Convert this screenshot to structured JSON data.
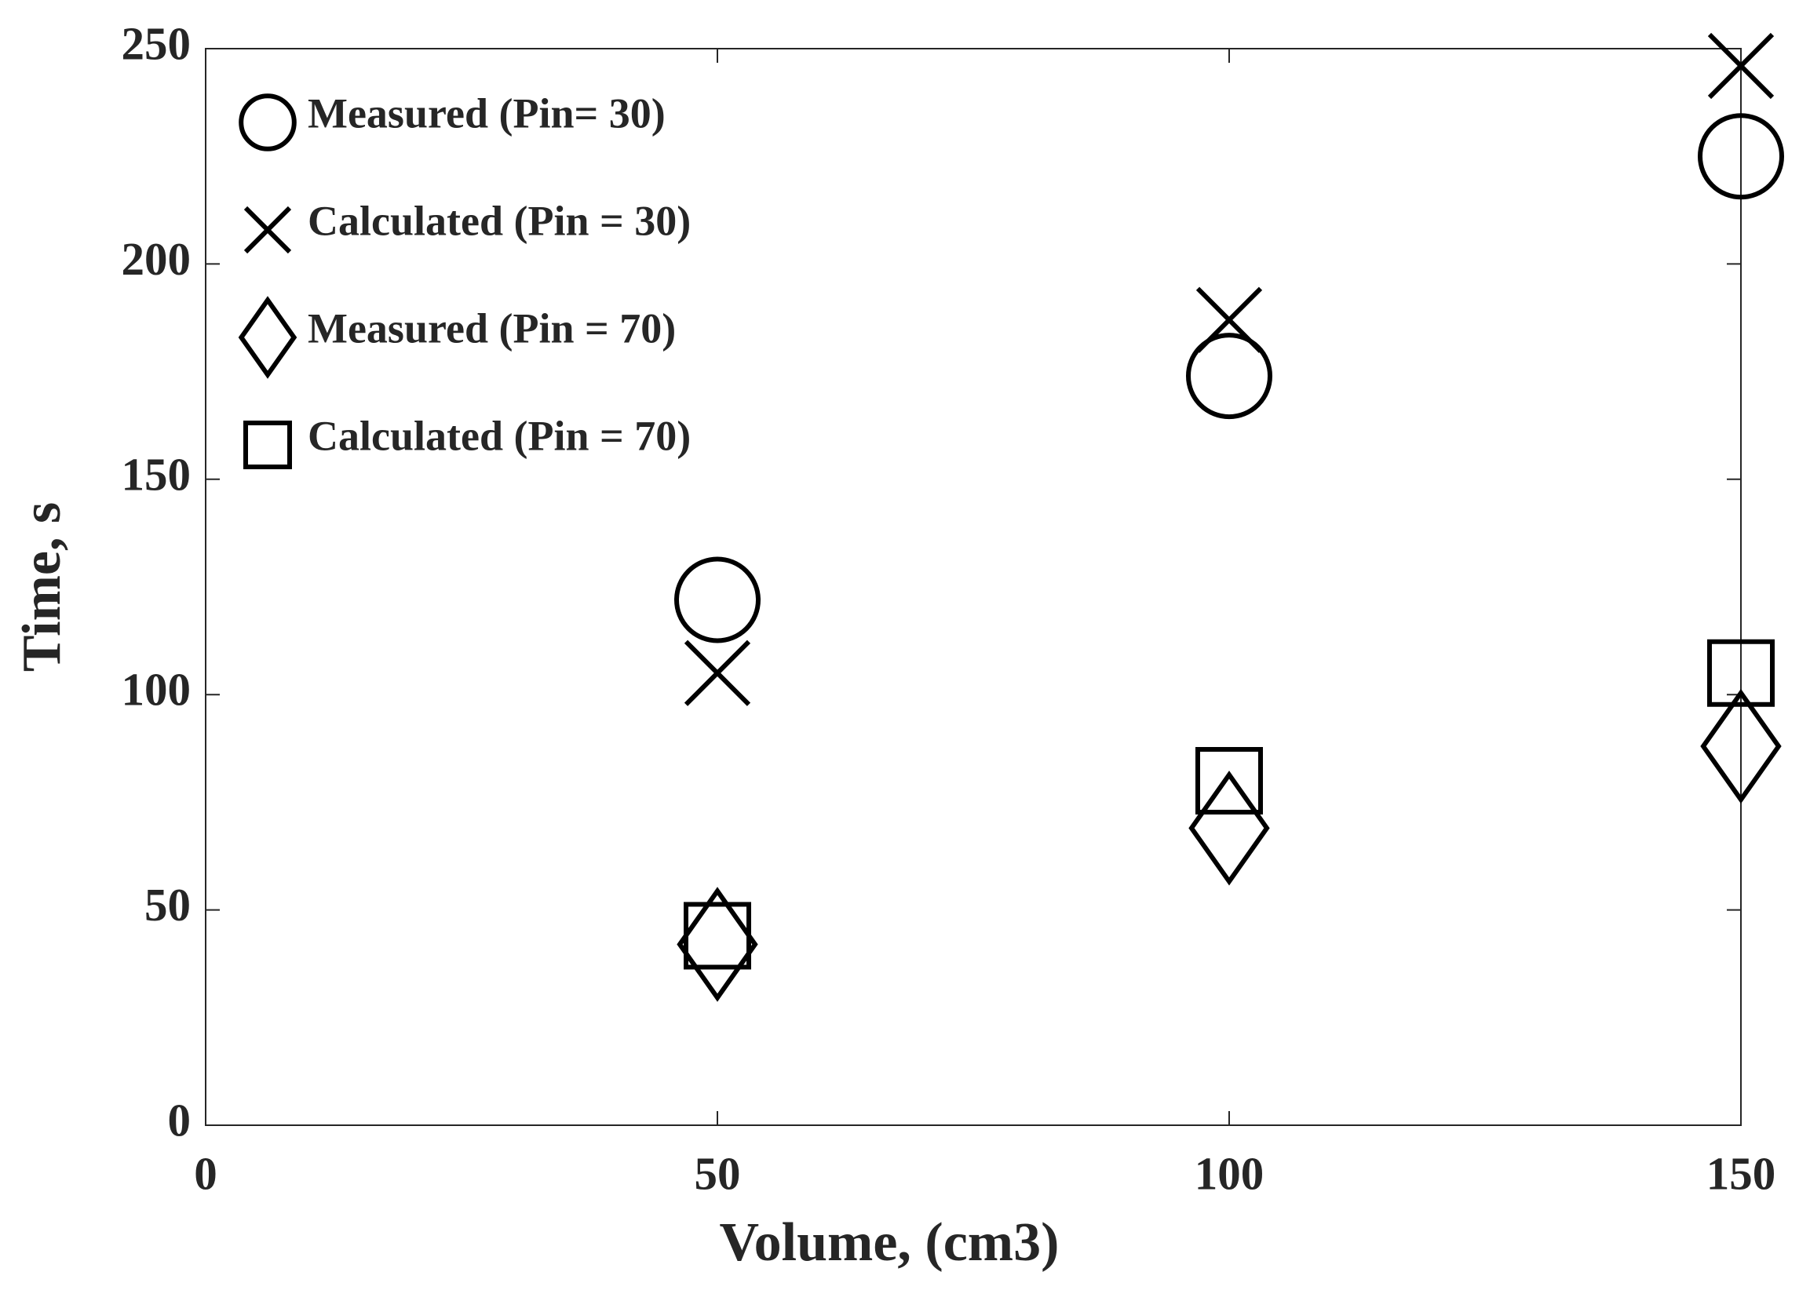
{
  "chart_data": {
    "type": "scatter",
    "xlabel": "Volume, (cm3)",
    "ylabel": "Time, s",
    "x": [
      50,
      100,
      150
    ],
    "series": [
      {
        "name": "Measured (Pin= 30)",
        "marker": "circle",
        "color": "#000000",
        "values": [
          122,
          174,
          225
        ]
      },
      {
        "name": "Calculated (Pin = 30)",
        "marker": "x",
        "color": "#000000",
        "values": [
          105,
          187,
          246
        ]
      },
      {
        "name": "Measured (Pin = 70)",
        "marker": "diamond",
        "color": "#000000",
        "values": [
          42,
          69,
          88
        ]
      },
      {
        "name": "Calculated (Pin = 70)",
        "marker": "square",
        "color": "#000000",
        "values": [
          44,
          80,
          105
        ]
      }
    ],
    "xlim": [
      0,
      150
    ],
    "xticks": [
      0,
      50,
      100,
      150
    ],
    "ylim": [
      0,
      250
    ],
    "yticks": [
      0,
      50,
      100,
      150,
      200,
      250
    ],
    "grid": false,
    "legend": "upper left"
  }
}
